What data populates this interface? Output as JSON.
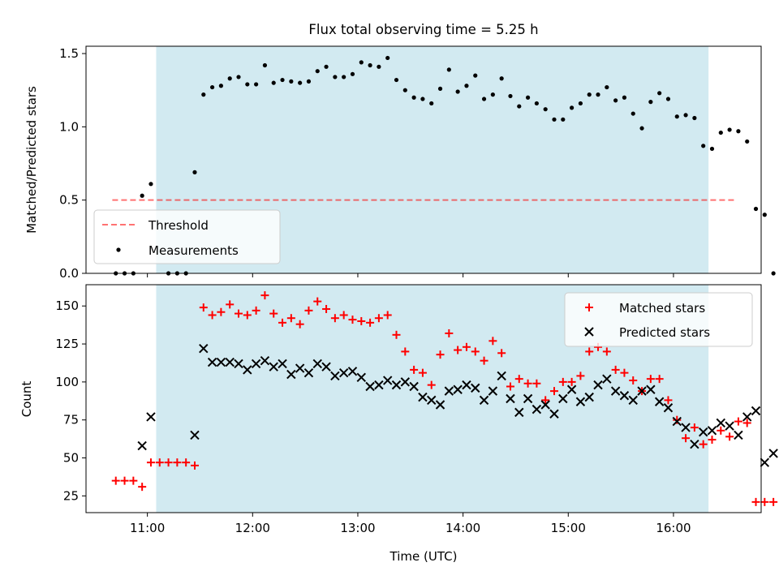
{
  "title": "Flux total observing time = 5.25 h",
  "colors": {
    "observing_span": "#add8e6",
    "threshold": "#ff0000",
    "measurements": "#000000",
    "matched": "#ff0000",
    "predicted": "#000000"
  },
  "chart_data": [
    {
      "type": "scatter",
      "ylabel": "Matched/Predicted stars",
      "ylim": [
        0,
        1.55
      ],
      "yticks": [
        "0.0",
        "0.5",
        "1.0",
        "1.5"
      ],
      "xlim": [
        "10:25",
        "16:50"
      ],
      "shaded_span": [
        "11:05",
        "16:20"
      ],
      "threshold": 0.5,
      "threshold_x": [
        "10:40",
        "16:35"
      ],
      "legend_placement": "lower-left",
      "legend": [
        "Threshold",
        "Measurements"
      ],
      "series": [
        {
          "name": "Measurements",
          "points": [
            [
              "10:42",
              0.0
            ],
            [
              "10:47",
              0.0
            ],
            [
              "10:52",
              0.0
            ],
            [
              "10:57",
              0.53
            ],
            [
              "11:02",
              0.61
            ],
            [
              "11:12",
              0.0
            ],
            [
              "11:17",
              0.0
            ],
            [
              "11:22",
              0.0
            ],
            [
              "11:27",
              0.69
            ],
            [
              "11:32",
              1.22
            ],
            [
              "11:37",
              1.27
            ],
            [
              "11:42",
              1.28
            ],
            [
              "11:47",
              1.33
            ],
            [
              "11:52",
              1.34
            ],
            [
              "11:57",
              1.29
            ],
            [
              "12:02",
              1.29
            ],
            [
              "12:07",
              1.42
            ],
            [
              "12:12",
              1.3
            ],
            [
              "12:17",
              1.32
            ],
            [
              "12:22",
              1.31
            ],
            [
              "12:27",
              1.3
            ],
            [
              "12:32",
              1.31
            ],
            [
              "12:37",
              1.38
            ],
            [
              "12:42",
              1.41
            ],
            [
              "12:47",
              1.34
            ],
            [
              "12:52",
              1.34
            ],
            [
              "12:57",
              1.36
            ],
            [
              "13:02",
              1.44
            ],
            [
              "13:07",
              1.42
            ],
            [
              "13:12",
              1.41
            ],
            [
              "13:17",
              1.47
            ],
            [
              "13:22",
              1.32
            ],
            [
              "13:27",
              1.25
            ],
            [
              "13:32",
              1.2
            ],
            [
              "13:37",
              1.19
            ],
            [
              "13:42",
              1.16
            ],
            [
              "13:47",
              1.26
            ],
            [
              "13:52",
              1.39
            ],
            [
              "13:57",
              1.24
            ],
            [
              "14:02",
              1.28
            ],
            [
              "14:07",
              1.35
            ],
            [
              "14:12",
              1.19
            ],
            [
              "14:17",
              1.22
            ],
            [
              "14:22",
              1.33
            ],
            [
              "14:27",
              1.21
            ],
            [
              "14:32",
              1.14
            ],
            [
              "14:37",
              1.2
            ],
            [
              "14:42",
              1.16
            ],
            [
              "14:47",
              1.12
            ],
            [
              "14:52",
              1.05
            ],
            [
              "14:57",
              1.05
            ],
            [
              "15:02",
              1.13
            ],
            [
              "15:07",
              1.16
            ],
            [
              "15:12",
              1.22
            ],
            [
              "15:17",
              1.22
            ],
            [
              "15:22",
              1.27
            ],
            [
              "15:27",
              1.18
            ],
            [
              "15:32",
              1.2
            ],
            [
              "15:37",
              1.09
            ],
            [
              "15:42",
              0.99
            ],
            [
              "15:47",
              1.17
            ],
            [
              "15:52",
              1.23
            ],
            [
              "15:57",
              1.19
            ],
            [
              "16:02",
              1.07
            ],
            [
              "16:07",
              1.08
            ],
            [
              "16:12",
              1.06
            ],
            [
              "16:17",
              0.87
            ],
            [
              "16:22",
              0.85
            ],
            [
              "16:27",
              0.96
            ],
            [
              "16:32",
              0.98
            ],
            [
              "16:37",
              0.97
            ],
            [
              "16:42",
              0.9
            ],
            [
              "16:47",
              0.44
            ],
            [
              "16:52",
              0.4
            ],
            [
              "16:57",
              0.0
            ]
          ]
        }
      ]
    },
    {
      "type": "scatter",
      "xlabel": "Time (UTC)",
      "ylabel": "Count",
      "ylim": [
        14,
        164
      ],
      "yticks": [
        "25",
        "50",
        "75",
        "100",
        "125",
        "150"
      ],
      "xlim": [
        "10:25",
        "16:50"
      ],
      "xticks": [
        "11:00",
        "12:00",
        "13:00",
        "14:00",
        "15:00",
        "16:00"
      ],
      "shaded_span": [
        "11:05",
        "16:20"
      ],
      "legend_placement": "upper-right",
      "legend": [
        "Matched stars",
        "Predicted stars"
      ],
      "series": [
        {
          "name": "Matched stars",
          "points": [
            [
              "10:42",
              35
            ],
            [
              "10:47",
              35
            ],
            [
              "10:52",
              35
            ],
            [
              "10:57",
              31
            ],
            [
              "11:02",
              47
            ],
            [
              "11:07",
              47
            ],
            [
              "11:12",
              47
            ],
            [
              "11:17",
              47
            ],
            [
              "11:22",
              47
            ],
            [
              "11:27",
              45
            ],
            [
              "11:32",
              149
            ],
            [
              "11:37",
              144
            ],
            [
              "11:42",
              146
            ],
            [
              "11:47",
              151
            ],
            [
              "11:52",
              145
            ],
            [
              "11:57",
              144
            ],
            [
              "12:02",
              147
            ],
            [
              "12:07",
              157
            ],
            [
              "12:12",
              145
            ],
            [
              "12:17",
              139
            ],
            [
              "12:22",
              142
            ],
            [
              "12:27",
              138
            ],
            [
              "12:32",
              147
            ],
            [
              "12:37",
              153
            ],
            [
              "12:42",
              148
            ],
            [
              "12:47",
              142
            ],
            [
              "12:52",
              144
            ],
            [
              "12:57",
              141
            ],
            [
              "13:02",
              140
            ],
            [
              "13:07",
              139
            ],
            [
              "13:12",
              142
            ],
            [
              "13:17",
              144
            ],
            [
              "13:22",
              131
            ],
            [
              "13:27",
              120
            ],
            [
              "13:32",
              108
            ],
            [
              "13:37",
              106
            ],
            [
              "13:42",
              98
            ],
            [
              "13:47",
              118
            ],
            [
              "13:52",
              132
            ],
            [
              "13:57",
              121
            ],
            [
              "14:02",
              123
            ],
            [
              "14:07",
              120
            ],
            [
              "14:12",
              114
            ],
            [
              "14:17",
              127
            ],
            [
              "14:22",
              119
            ],
            [
              "14:27",
              97
            ],
            [
              "14:32",
              102
            ],
            [
              "14:37",
              99
            ],
            [
              "14:42",
              99
            ],
            [
              "14:47",
              88
            ],
            [
              "14:52",
              94
            ],
            [
              "14:57",
              100
            ],
            [
              "15:02",
              100
            ],
            [
              "15:07",
              104
            ],
            [
              "15:12",
              120
            ],
            [
              "15:17",
              123
            ],
            [
              "15:22",
              120
            ],
            [
              "15:27",
              108
            ],
            [
              "15:32",
              106
            ],
            [
              "15:37",
              101
            ],
            [
              "15:42",
              94
            ],
            [
              "15:47",
              102
            ],
            [
              "15:52",
              102
            ],
            [
              "15:57",
              88
            ],
            [
              "16:02",
              75
            ],
            [
              "16:07",
              63
            ],
            [
              "16:12",
              70
            ],
            [
              "16:17",
              59
            ],
            [
              "16:22",
              62
            ],
            [
              "16:27",
              68
            ],
            [
              "16:32",
              64
            ],
            [
              "16:37",
              74
            ],
            [
              "16:42",
              73
            ],
            [
              "16:47",
              21
            ],
            [
              "16:52",
              21
            ],
            [
              "16:57",
              21
            ]
          ]
        },
        {
          "name": "Predicted stars",
          "points": [
            [
              "10:57",
              58
            ],
            [
              "11:02",
              77
            ],
            [
              "11:27",
              65
            ],
            [
              "11:32",
              122
            ],
            [
              "11:37",
              113
            ],
            [
              "11:42",
              113
            ],
            [
              "11:47",
              113
            ],
            [
              "11:52",
              112
            ],
            [
              "11:57",
              108
            ],
            [
              "12:02",
              112
            ],
            [
              "12:07",
              114
            ],
            [
              "12:12",
              110
            ],
            [
              "12:17",
              112
            ],
            [
              "12:22",
              105
            ],
            [
              "12:27",
              109
            ],
            [
              "12:32",
              106
            ],
            [
              "12:37",
              112
            ],
            [
              "12:42",
              110
            ],
            [
              "12:47",
              104
            ],
            [
              "12:52",
              106
            ],
            [
              "12:57",
              107
            ],
            [
              "13:02",
              103
            ],
            [
              "13:07",
              97
            ],
            [
              "13:12",
              98
            ],
            [
              "13:17",
              101
            ],
            [
              "13:22",
              98
            ],
            [
              "13:27",
              100
            ],
            [
              "13:32",
              97
            ],
            [
              "13:37",
              90
            ],
            [
              "13:42",
              88
            ],
            [
              "13:47",
              85
            ],
            [
              "13:52",
              94
            ],
            [
              "13:57",
              95
            ],
            [
              "14:02",
              98
            ],
            [
              "14:07",
              96
            ],
            [
              "14:12",
              88
            ],
            [
              "14:17",
              94
            ],
            [
              "14:22",
              104
            ],
            [
              "14:27",
              89
            ],
            [
              "14:32",
              80
            ],
            [
              "14:37",
              89
            ],
            [
              "14:42",
              82
            ],
            [
              "14:47",
              85
            ],
            [
              "14:52",
              79
            ],
            [
              "14:57",
              89
            ],
            [
              "15:02",
              95
            ],
            [
              "15:07",
              87
            ],
            [
              "15:12",
              90
            ],
            [
              "15:17",
              98
            ],
            [
              "15:22",
              102
            ],
            [
              "15:27",
              94
            ],
            [
              "15:32",
              91
            ],
            [
              "15:37",
              88
            ],
            [
              "15:42",
              94
            ],
            [
              "15:47",
              95
            ],
            [
              "15:52",
              87
            ],
            [
              "15:57",
              83
            ],
            [
              "16:02",
              74
            ],
            [
              "16:07",
              70
            ],
            [
              "16:12",
              59
            ],
            [
              "16:17",
              67
            ],
            [
              "16:22",
              68
            ],
            [
              "16:27",
              73
            ],
            [
              "16:32",
              71
            ],
            [
              "16:37",
              65
            ],
            [
              "16:42",
              77
            ],
            [
              "16:47",
              81
            ],
            [
              "16:52",
              47
            ],
            [
              "16:57",
              53
            ]
          ]
        }
      ]
    }
  ]
}
